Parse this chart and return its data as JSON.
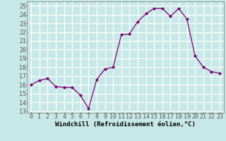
{
  "x": [
    0,
    1,
    2,
    3,
    4,
    5,
    6,
    7,
    8,
    9,
    10,
    11,
    12,
    13,
    14,
    15,
    16,
    17,
    18,
    19,
    20,
    21,
    22,
    23
  ],
  "y": [
    16.0,
    16.5,
    16.7,
    15.8,
    15.7,
    15.7,
    14.8,
    13.3,
    16.6,
    17.8,
    18.0,
    21.7,
    21.8,
    23.2,
    24.1,
    24.7,
    24.7,
    23.8,
    24.7,
    23.5,
    19.3,
    18.0,
    17.5,
    17.3
  ],
  "line_color": "#7b0070",
  "marker": "D",
  "marker_size": 2.0,
  "bg_color": "#c8e8e8",
  "grid_color": "#b0d0d0",
  "xlabel": "Windchill (Refroidissement éolien,°C)",
  "yticks": [
    13,
    14,
    15,
    16,
    17,
    18,
    19,
    20,
    21,
    22,
    23,
    24,
    25
  ],
  "ylim": [
    12.8,
    25.5
  ],
  "xlim": [
    -0.5,
    23.5
  ],
  "xlabel_fontsize": 6.5,
  "tick_fontsize": 6.0
}
